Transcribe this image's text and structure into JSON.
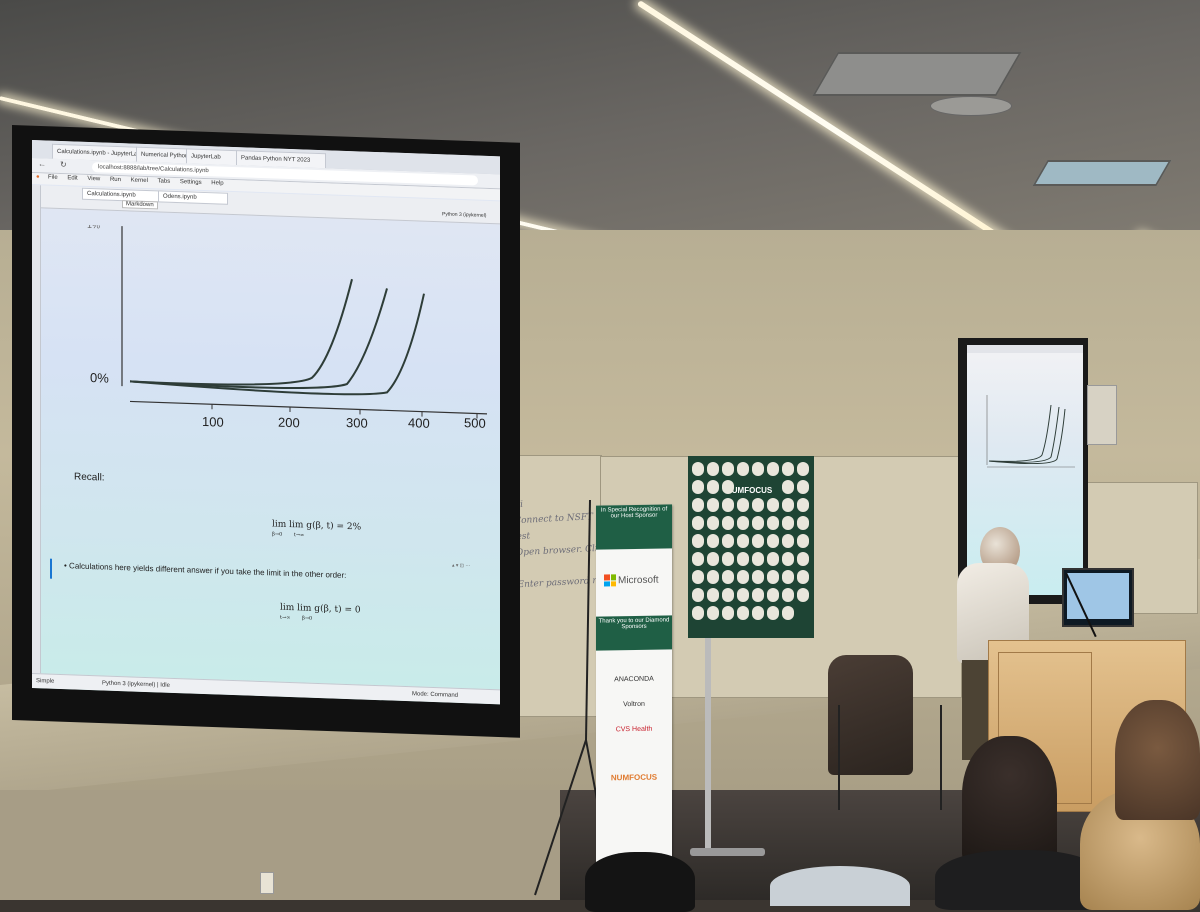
{
  "browser": {
    "tabs": [
      "Calculations.ipynb - JupyterLab",
      "Numerical Python",
      "JupyterLab",
      "Pandas Python NYT 2023"
    ],
    "url": "localhost:8888/lab/tree/Calculations.ipynb",
    "menu": [
      "File",
      "Edit",
      "View",
      "Run",
      "Kernel",
      "Tabs",
      "Settings",
      "Help"
    ]
  },
  "notebook": {
    "file_tabs": [
      "Calculations.ipynb",
      "Odens.ipynb"
    ],
    "cell_type": "Markdown",
    "kernel_label": "Python 3 (ipykernel)",
    "status_mode": "Simple",
    "status_bar": "Python 3 (ipykernel) | Idle",
    "status_right": "Mode: Command"
  },
  "plot": {
    "y_tick_top": "1%",
    "y_tick_zero": "0%",
    "x_ticks": [
      "100",
      "200",
      "300",
      "400",
      "500"
    ]
  },
  "cells": {
    "recall_label": "Recall:",
    "formula_1": "lim lim g(β, t) = 2%",
    "formula_1_sub_outer": "β→0",
    "formula_1_sub_inner": "t→∞",
    "bullet_text": "Calculations here yields different answer if you take the limit in the other order:",
    "formula_2": "lim lim g(β, t) = 0",
    "formula_2_sub_outer": "t→∞",
    "formula_2_sub_inner": "β→0"
  },
  "whiteboard": {
    "lines": [
      "WiFi",
      "1. Connect to NSFT Guest",
      "2. Open browser. Click \"A",
      "3. Enter password  nsft"
    ]
  },
  "banner": {
    "top_text": "In Special Recognition of our Host Sponsor",
    "microsoft": "Microsoft",
    "diamond_text": "Thank you to our Diamond Sponsors",
    "sponsors": [
      "ANACONDA",
      "Voltron",
      "CVS Health"
    ],
    "bottom_logo": "NUMFOCUS"
  },
  "poster": {
    "title": "NUMFOCUS"
  },
  "colors": {
    "curve": "#2e3d38",
    "banner_green": "#1f5f45",
    "poster_green": "#1e4434",
    "microsoft_red": "#f25022",
    "microsoft_green": "#7fba00",
    "microsoft_blue": "#00a4ef",
    "microsoft_yellow": "#ffb900"
  }
}
